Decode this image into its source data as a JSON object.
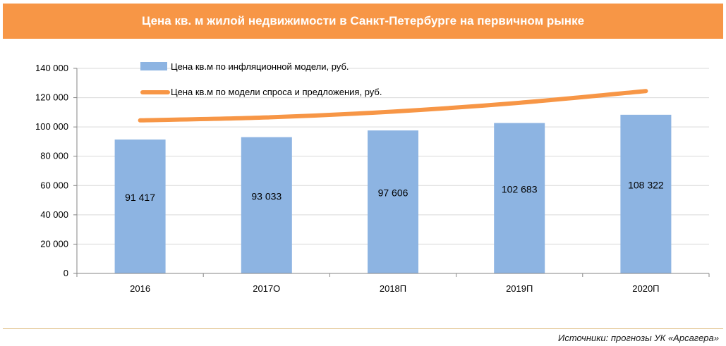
{
  "header": {
    "title": "Цена кв. м жилой недвижимости в Санкт-Петербурге на первичном рынке"
  },
  "footer": {
    "source": "Источники: прогнозы УК «Арсагера»"
  },
  "colors": {
    "header_bg": "#f79646",
    "bar": "#8db4e2",
    "line": "#f79646",
    "grid": "#d9d9d9",
    "axis": "#868686",
    "footer_rule": "#e0bf86"
  },
  "chart_data": {
    "type": "bar",
    "categories": [
      "2016",
      "2017О",
      "2018П",
      "2019П",
      "2020П"
    ],
    "series": [
      {
        "name": "Цена кв.м по инфляционной модели, руб.",
        "type": "bar",
        "values": [
          91417,
          93033,
          97606,
          102683,
          108322
        ],
        "data_labels": [
          "91 417",
          "93 033",
          "97 606",
          "102 683",
          "108 322"
        ]
      },
      {
        "name": "Цена кв.м по модели спроса и предложения, руб.",
        "type": "line",
        "values": [
          104500,
          106500,
          110500,
          116500,
          124500
        ]
      }
    ],
    "ylim": [
      0,
      140000
    ],
    "yticks": [
      0,
      20000,
      40000,
      60000,
      80000,
      100000,
      120000,
      140000
    ],
    "ytick_labels": [
      "0",
      "20 000",
      "40 000",
      "60 000",
      "80 000",
      "100 000",
      "120 000",
      "140 000"
    ],
    "grid": true,
    "legend_position": "top-left"
  }
}
